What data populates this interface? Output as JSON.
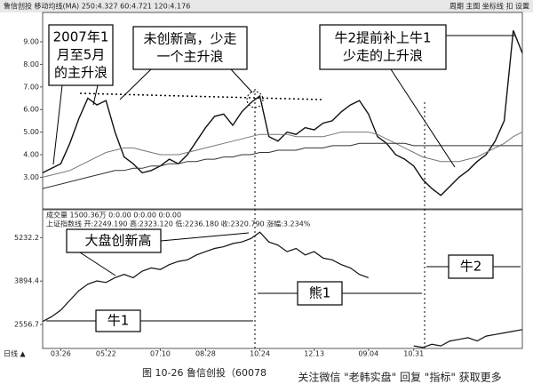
{
  "chart_data": {
    "type": "line",
    "header": "鲁信创投 移动均线(MA)  250:4.327  60:4.721  120:4.176",
    "menu": "周期  主图  坐标线  扣  设置",
    "volume_label": "成交量  1500.36万  0:0.00  0:0.00  0:0.00",
    "index_label": "上证指数线  开:2249.190  高:2323.120  低:2236.180  收:2320.790  涨幅:3.234%",
    "period_label": "日线 ▲",
    "annotations": {
      "main_wave": [
        "2007年1",
        "月至5月",
        "的主升浪"
      ],
      "no_high": [
        "未创新高，少走",
        "一个主升浪"
      ],
      "bull2": [
        "牛2提前补上牛1",
        "少走的上升浪"
      ],
      "index_high": "大盘创新高",
      "bear1": "熊1",
      "bull2_label": "牛2",
      "bull1_label": "牛1"
    },
    "caption": "图 10-26   鲁信创投（60078",
    "watermark": "关注微信 \"老韩实盘\" 回复 \"指标\" 获取更多",
    "x": [
      0,
      1,
      2,
      3,
      4,
      5,
      6,
      7,
      8,
      9,
      10,
      11,
      12,
      13,
      14,
      15,
      16,
      17,
      18,
      19,
      20,
      21,
      22,
      23,
      24,
      25,
      26,
      27,
      28,
      29,
      30,
      31,
      32,
      33,
      34,
      35,
      36,
      37,
      38,
      39,
      40,
      41,
      42,
      43,
      44,
      45,
      46,
      47,
      48,
      49,
      50,
      51,
      52,
      53
    ],
    "xlim": [
      0,
      53
    ],
    "xticks": [
      {
        "value": 2,
        "label": "03.26"
      },
      {
        "value": 7,
        "label": "05.22"
      },
      {
        "value": 13,
        "label": "07.10"
      },
      {
        "value": 18,
        "label": "08.28"
      },
      {
        "value": 24,
        "label": "10.24"
      },
      {
        "value": 30,
        "label": "12.13"
      },
      {
        "value": 36,
        "label": "09.04"
      },
      {
        "value": 41,
        "label": "10.31"
      }
    ],
    "ylim": [
      1.6,
      10.3
    ],
    "yticks": [
      {
        "value": 3,
        "label": "3.00"
      },
      {
        "value": 4,
        "label": "4.00"
      },
      {
        "value": 5,
        "label": "5.00"
      },
      {
        "value": 6,
        "label": "6.00"
      },
      {
        "value": 7,
        "label": "7.00"
      },
      {
        "value": 8,
        "label": "8.00"
      },
      {
        "value": 9,
        "label": "9.00"
      }
    ],
    "series": [
      {
        "color": "#111",
        "values": [
          3.2,
          3.4,
          3.6,
          4.5,
          5.6,
          6.5,
          6.2,
          6.4,
          5.0,
          3.9,
          3.6,
          3.2,
          3.3,
          3.5,
          3.8,
          3.6,
          4.0,
          4.6,
          5.2,
          5.7,
          5.8,
          5.3,
          5.9,
          6.3,
          6.6,
          4.8,
          4.6,
          5.0,
          4.9,
          5.2,
          5.1,
          5.4,
          5.5,
          5.9,
          6.2,
          6.4,
          5.8,
          4.8,
          4.5,
          4.0,
          3.8,
          3.5,
          2.9,
          2.5,
          2.2,
          2.6,
          3.0,
          3.3,
          3.7,
          4.0,
          4.6,
          5.5,
          9.5,
          8.5
        ]
      },
      {
        "color": "#777",
        "values": [
          3.0,
          3.1,
          3.2,
          3.3,
          3.5,
          3.7,
          3.9,
          4.1,
          4.2,
          4.3,
          4.3,
          4.2,
          4.1,
          4.0,
          4.0,
          4.0,
          4.1,
          4.2,
          4.3,
          4.4,
          4.5,
          4.6,
          4.7,
          4.8,
          4.9,
          4.9,
          4.9,
          4.9,
          4.8,
          4.8,
          4.8,
          4.8,
          4.9,
          5.0,
          5.0,
          5.0,
          5.0,
          4.9,
          4.7,
          4.5,
          4.3,
          4.1,
          3.9,
          3.8,
          3.7,
          3.7,
          3.7,
          3.8,
          3.9,
          4.1,
          4.3,
          4.5,
          4.8,
          5.0
        ]
      },
      {
        "color": "#333",
        "values": [
          2.5,
          2.6,
          2.7,
          2.8,
          2.9,
          3.0,
          3.1,
          3.2,
          3.3,
          3.3,
          3.4,
          3.4,
          3.5,
          3.5,
          3.6,
          3.6,
          3.7,
          3.7,
          3.8,
          3.8,
          3.9,
          3.9,
          4.0,
          4.0,
          4.1,
          4.1,
          4.2,
          4.2,
          4.2,
          4.3,
          4.3,
          4.3,
          4.4,
          4.4,
          4.4,
          4.5,
          4.5,
          4.5,
          4.5,
          4.5,
          4.5,
          4.4,
          4.4,
          4.4,
          4.4,
          4.4,
          4.4,
          4.4,
          4.4,
          4.4,
          4.4,
          4.4,
          4.4,
          4.4
        ]
      }
    ],
    "index": {
      "ylim": [
        1820,
        6090
      ],
      "yticks": [
        2556.7,
        3894.4,
        5232.2
      ],
      "color": "#111",
      "values": [
        2650,
        2800,
        3000,
        3300,
        3600,
        3800,
        3900,
        3850,
        4000,
        4100,
        4000,
        4200,
        4300,
        4250,
        4400,
        4500,
        4550,
        4700,
        4800,
        4900,
        4950,
        5050,
        5100,
        5200,
        5400,
        5100,
        5000,
        4800,
        4900,
        4700,
        4800,
        4600,
        4550,
        4400,
        4300,
        4100,
        4000,
        null,
        null,
        null,
        null,
        1900,
        1850,
        1950,
        1900,
        2050,
        2100,
        2150,
        2050,
        2200,
        2250,
        2300,
        2350,
        2400
      ]
    }
  }
}
